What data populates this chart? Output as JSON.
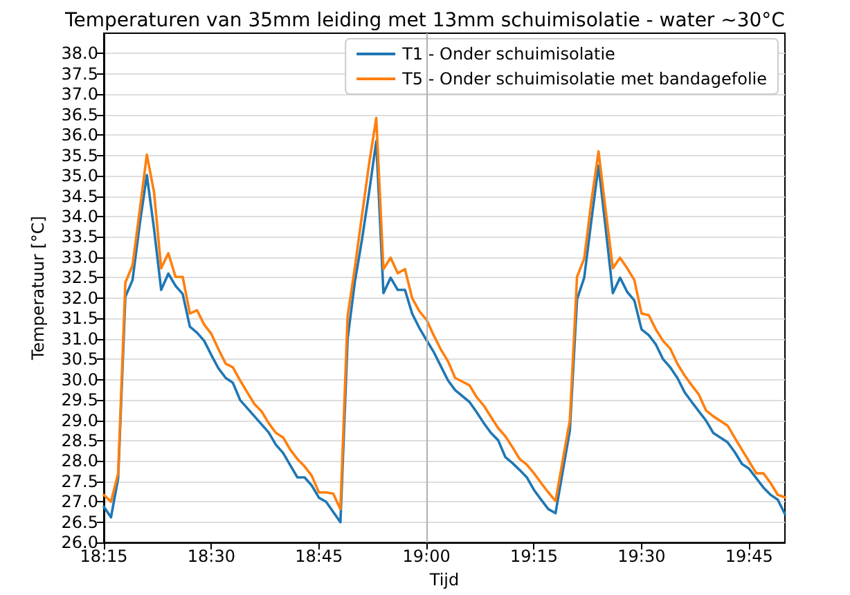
{
  "chart_data": {
    "type": "line",
    "title": "Temperaturen van 35mm leiding met 13mm schuimisolatie - water ~30°C",
    "xlabel": "Tijd",
    "ylabel": "Temperatuur [°C]",
    "x": [
      18.25,
      18.2667,
      18.2833,
      18.3,
      18.3167,
      18.3333,
      18.35,
      18.3667,
      18.3833,
      18.4,
      18.4167,
      18.4333,
      18.45,
      18.4667,
      18.4833,
      18.5,
      18.5167,
      18.5333,
      18.55,
      18.5667,
      18.5833,
      18.6,
      18.6167,
      18.6333,
      18.65,
      18.6667,
      18.6833,
      18.7,
      18.7167,
      18.7333,
      18.75,
      18.7667,
      18.7833,
      18.8,
      18.8167,
      18.8333,
      18.85,
      18.8667,
      18.8833,
      18.9,
      18.9167,
      18.9333,
      18.95,
      18.9667,
      18.9833,
      19.0,
      19.0167,
      19.0333,
      19.05,
      19.0667,
      19.1,
      19.1167,
      19.1333,
      19.15,
      19.1667,
      19.1833,
      19.2,
      19.2167,
      19.2333,
      19.25,
      19.2667,
      19.2833,
      19.3,
      19.3333,
      19.35,
      19.3667,
      19.3833,
      19.4,
      19.4167,
      19.4333,
      19.45,
      19.4667,
      19.4833,
      19.5,
      19.5167,
      19.5333,
      19.55,
      19.5667,
      19.5833,
      19.6,
      19.6167,
      19.6333,
      19.65,
      19.6667,
      19.7,
      19.7167,
      19.7333,
      19.75,
      19.7667,
      19.7833,
      19.8,
      19.8167,
      19.8333
    ],
    "series": [
      {
        "name": "T1 - Onder schuimisolatie",
        "color": "#1f77b4",
        "values": [
          26.88,
          26.62,
          27.58,
          32.03,
          32.44,
          33.8,
          35.02,
          33.7,
          32.2,
          32.6,
          32.3,
          32.1,
          31.3,
          31.15,
          30.95,
          30.6,
          30.27,
          30.04,
          29.92,
          29.5,
          29.3,
          29.1,
          28.9,
          28.7,
          28.4,
          28.2,
          27.9,
          27.6,
          27.6,
          27.4,
          27.1,
          27.0,
          26.75,
          26.5,
          31.0,
          32.38,
          33.43,
          34.6,
          35.85,
          32.12,
          32.5,
          32.2,
          32.2,
          31.62,
          31.27,
          30.97,
          30.68,
          30.33,
          29.98,
          29.74,
          29.45,
          29.2,
          28.93,
          28.69,
          28.51,
          28.1,
          27.95,
          27.78,
          27.6,
          27.29,
          27.05,
          26.82,
          26.72,
          28.75,
          31.97,
          32.5,
          33.9,
          35.25,
          33.7,
          32.12,
          32.5,
          32.15,
          31.94,
          31.23,
          31.09,
          30.86,
          30.5,
          30.3,
          30.04,
          29.69,
          29.45,
          29.22,
          28.99,
          28.69,
          28.46,
          28.22,
          27.93,
          27.81,
          27.58,
          27.35,
          27.17,
          27.05,
          26.7
        ]
      },
      {
        "name": "T5 - Onder schuimisolatie met bandagefolie",
        "color": "#ff7f0e",
        "values": [
          27.17,
          27.0,
          27.7,
          32.38,
          32.8,
          34.14,
          35.52,
          34.6,
          32.73,
          33.1,
          32.52,
          32.52,
          31.62,
          31.7,
          31.35,
          31.12,
          30.74,
          30.39,
          30.3,
          29.98,
          29.69,
          29.4,
          29.22,
          28.93,
          28.69,
          28.58,
          28.28,
          28.05,
          27.87,
          27.64,
          27.23,
          27.23,
          27.2,
          26.82,
          31.56,
          32.73,
          34.02,
          35.3,
          36.42,
          32.71,
          32.99,
          32.61,
          32.71,
          32.0,
          31.68,
          31.47,
          31.09,
          30.74,
          30.45,
          30.04,
          29.86,
          29.57,
          29.36,
          29.08,
          28.81,
          28.61,
          28.34,
          28.05,
          27.91,
          27.7,
          27.46,
          27.23,
          27.02,
          29.0,
          32.52,
          32.97,
          34.37,
          35.6,
          34.14,
          32.73,
          32.99,
          32.73,
          32.44,
          31.62,
          31.58,
          31.23,
          30.95,
          30.76,
          30.39,
          30.1,
          29.86,
          29.63,
          29.24,
          29.1,
          28.87,
          28.57,
          28.28,
          27.99,
          27.7,
          27.7,
          27.46,
          27.17,
          27.11
        ]
      }
    ],
    "xlim": [
      18.25,
      19.8333
    ],
    "xticks": [
      {
        "value": 18.25,
        "label": "18:15"
      },
      {
        "value": 18.5,
        "label": "18:30"
      },
      {
        "value": 18.75,
        "label": "18:45"
      },
      {
        "value": 19,
        "label": "19:00"
      },
      {
        "value": 19.25,
        "label": "19:15"
      },
      {
        "value": 19.5,
        "label": "19:30"
      },
      {
        "value": 19.75,
        "label": "19:45"
      }
    ],
    "ylim": [
      26,
      38.5
    ],
    "yticks": [
      {
        "value": 26,
        "label": "26.0"
      },
      {
        "value": 26.5,
        "label": "26.5"
      },
      {
        "value": 27,
        "label": "27.0"
      },
      {
        "value": 27.5,
        "label": "27.5"
      },
      {
        "value": 28,
        "label": "28.0"
      },
      {
        "value": 28.5,
        "label": "28.5"
      },
      {
        "value": 29,
        "label": "29.0"
      },
      {
        "value": 29.5,
        "label": "29.5"
      },
      {
        "value": 30,
        "label": "30.0"
      },
      {
        "value": 30.5,
        "label": "30.5"
      },
      {
        "value": 31,
        "label": "31.0"
      },
      {
        "value": 31.5,
        "label": "31.5"
      },
      {
        "value": 32,
        "label": "32.0"
      },
      {
        "value": 32.5,
        "label": "32.5"
      },
      {
        "value": 33,
        "label": "33.0"
      },
      {
        "value": 33.5,
        "label": "33.5"
      },
      {
        "value": 34,
        "label": "34.0"
      },
      {
        "value": 34.5,
        "label": "34.5"
      },
      {
        "value": 35,
        "label": "35.0"
      },
      {
        "value": 35.5,
        "label": "35.5"
      },
      {
        "value": 36,
        "label": "36.0"
      },
      {
        "value": 36.5,
        "label": "36.5"
      },
      {
        "value": 37,
        "label": "37.0"
      },
      {
        "value": 37.5,
        "label": "37.5"
      },
      {
        "value": 38,
        "label": "38.0"
      }
    ],
    "ref_lines": [
      {
        "axis": "x",
        "value": 19,
        "color": "#b0b0b0"
      }
    ],
    "grid": "y",
    "legend": "top right",
    "marker": "none",
    "line_style": "solid"
  }
}
